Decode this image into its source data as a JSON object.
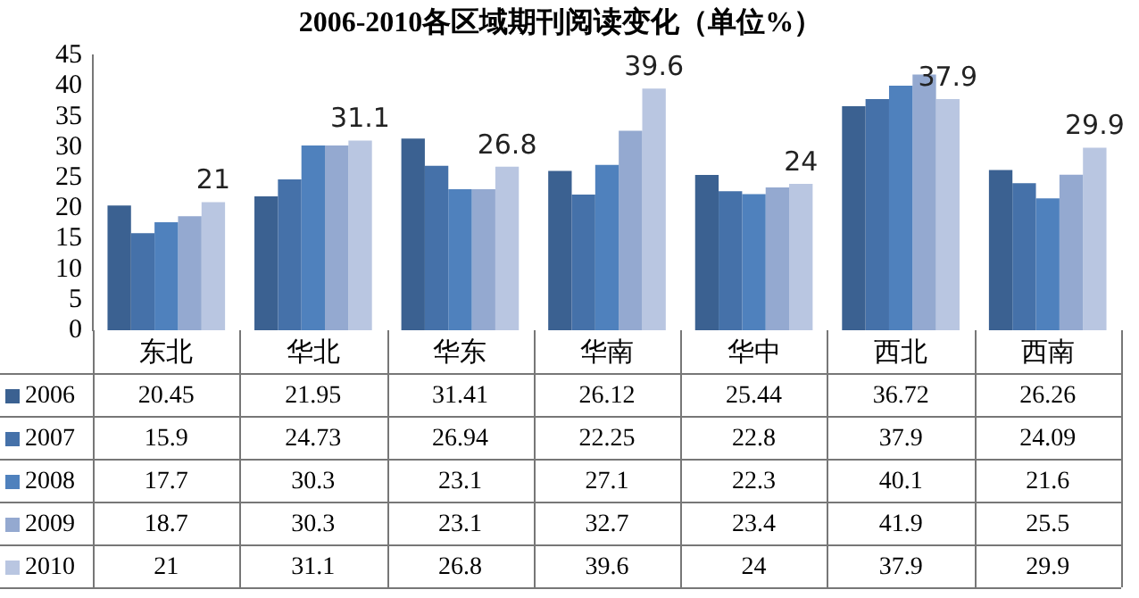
{
  "chart_data": {
    "type": "bar",
    "title": "2006-2010各区域期刊阅读变化（单位%）",
    "categories": [
      "东北",
      "华北",
      "华东",
      "华南",
      "华中",
      "西北",
      "西南"
    ],
    "series": [
      {
        "name": "2006",
        "color": "#3b6191",
        "values": [
          20.45,
          21.95,
          31.41,
          26.12,
          25.44,
          36.72,
          26.26
        ]
      },
      {
        "name": "2007",
        "color": "#4571a9",
        "values": [
          15.9,
          24.73,
          26.94,
          22.25,
          22.8,
          37.9,
          24.09
        ]
      },
      {
        "name": "2008",
        "color": "#4f81bd",
        "values": [
          17.7,
          30.3,
          23.1,
          27.1,
          22.3,
          40.1,
          21.6
        ]
      },
      {
        "name": "2009",
        "color": "#94a9d0",
        "values": [
          18.7,
          30.3,
          23.1,
          32.7,
          23.4,
          41.9,
          25.5
        ]
      },
      {
        "name": "2010",
        "color": "#b9c6e1",
        "values": [
          21,
          31.1,
          26.8,
          39.6,
          24,
          37.9,
          29.9
        ]
      }
    ],
    "annotations": [
      "21",
      "31.1",
      "26.8",
      "39.6",
      "24",
      "37.9",
      "29.9"
    ],
    "ylim": [
      0,
      45
    ],
    "yticks": [
      0,
      5,
      10,
      15,
      20,
      25,
      30,
      35,
      40,
      45
    ],
    "grid": false,
    "legend": "bottom left",
    "data_labels": true
  }
}
